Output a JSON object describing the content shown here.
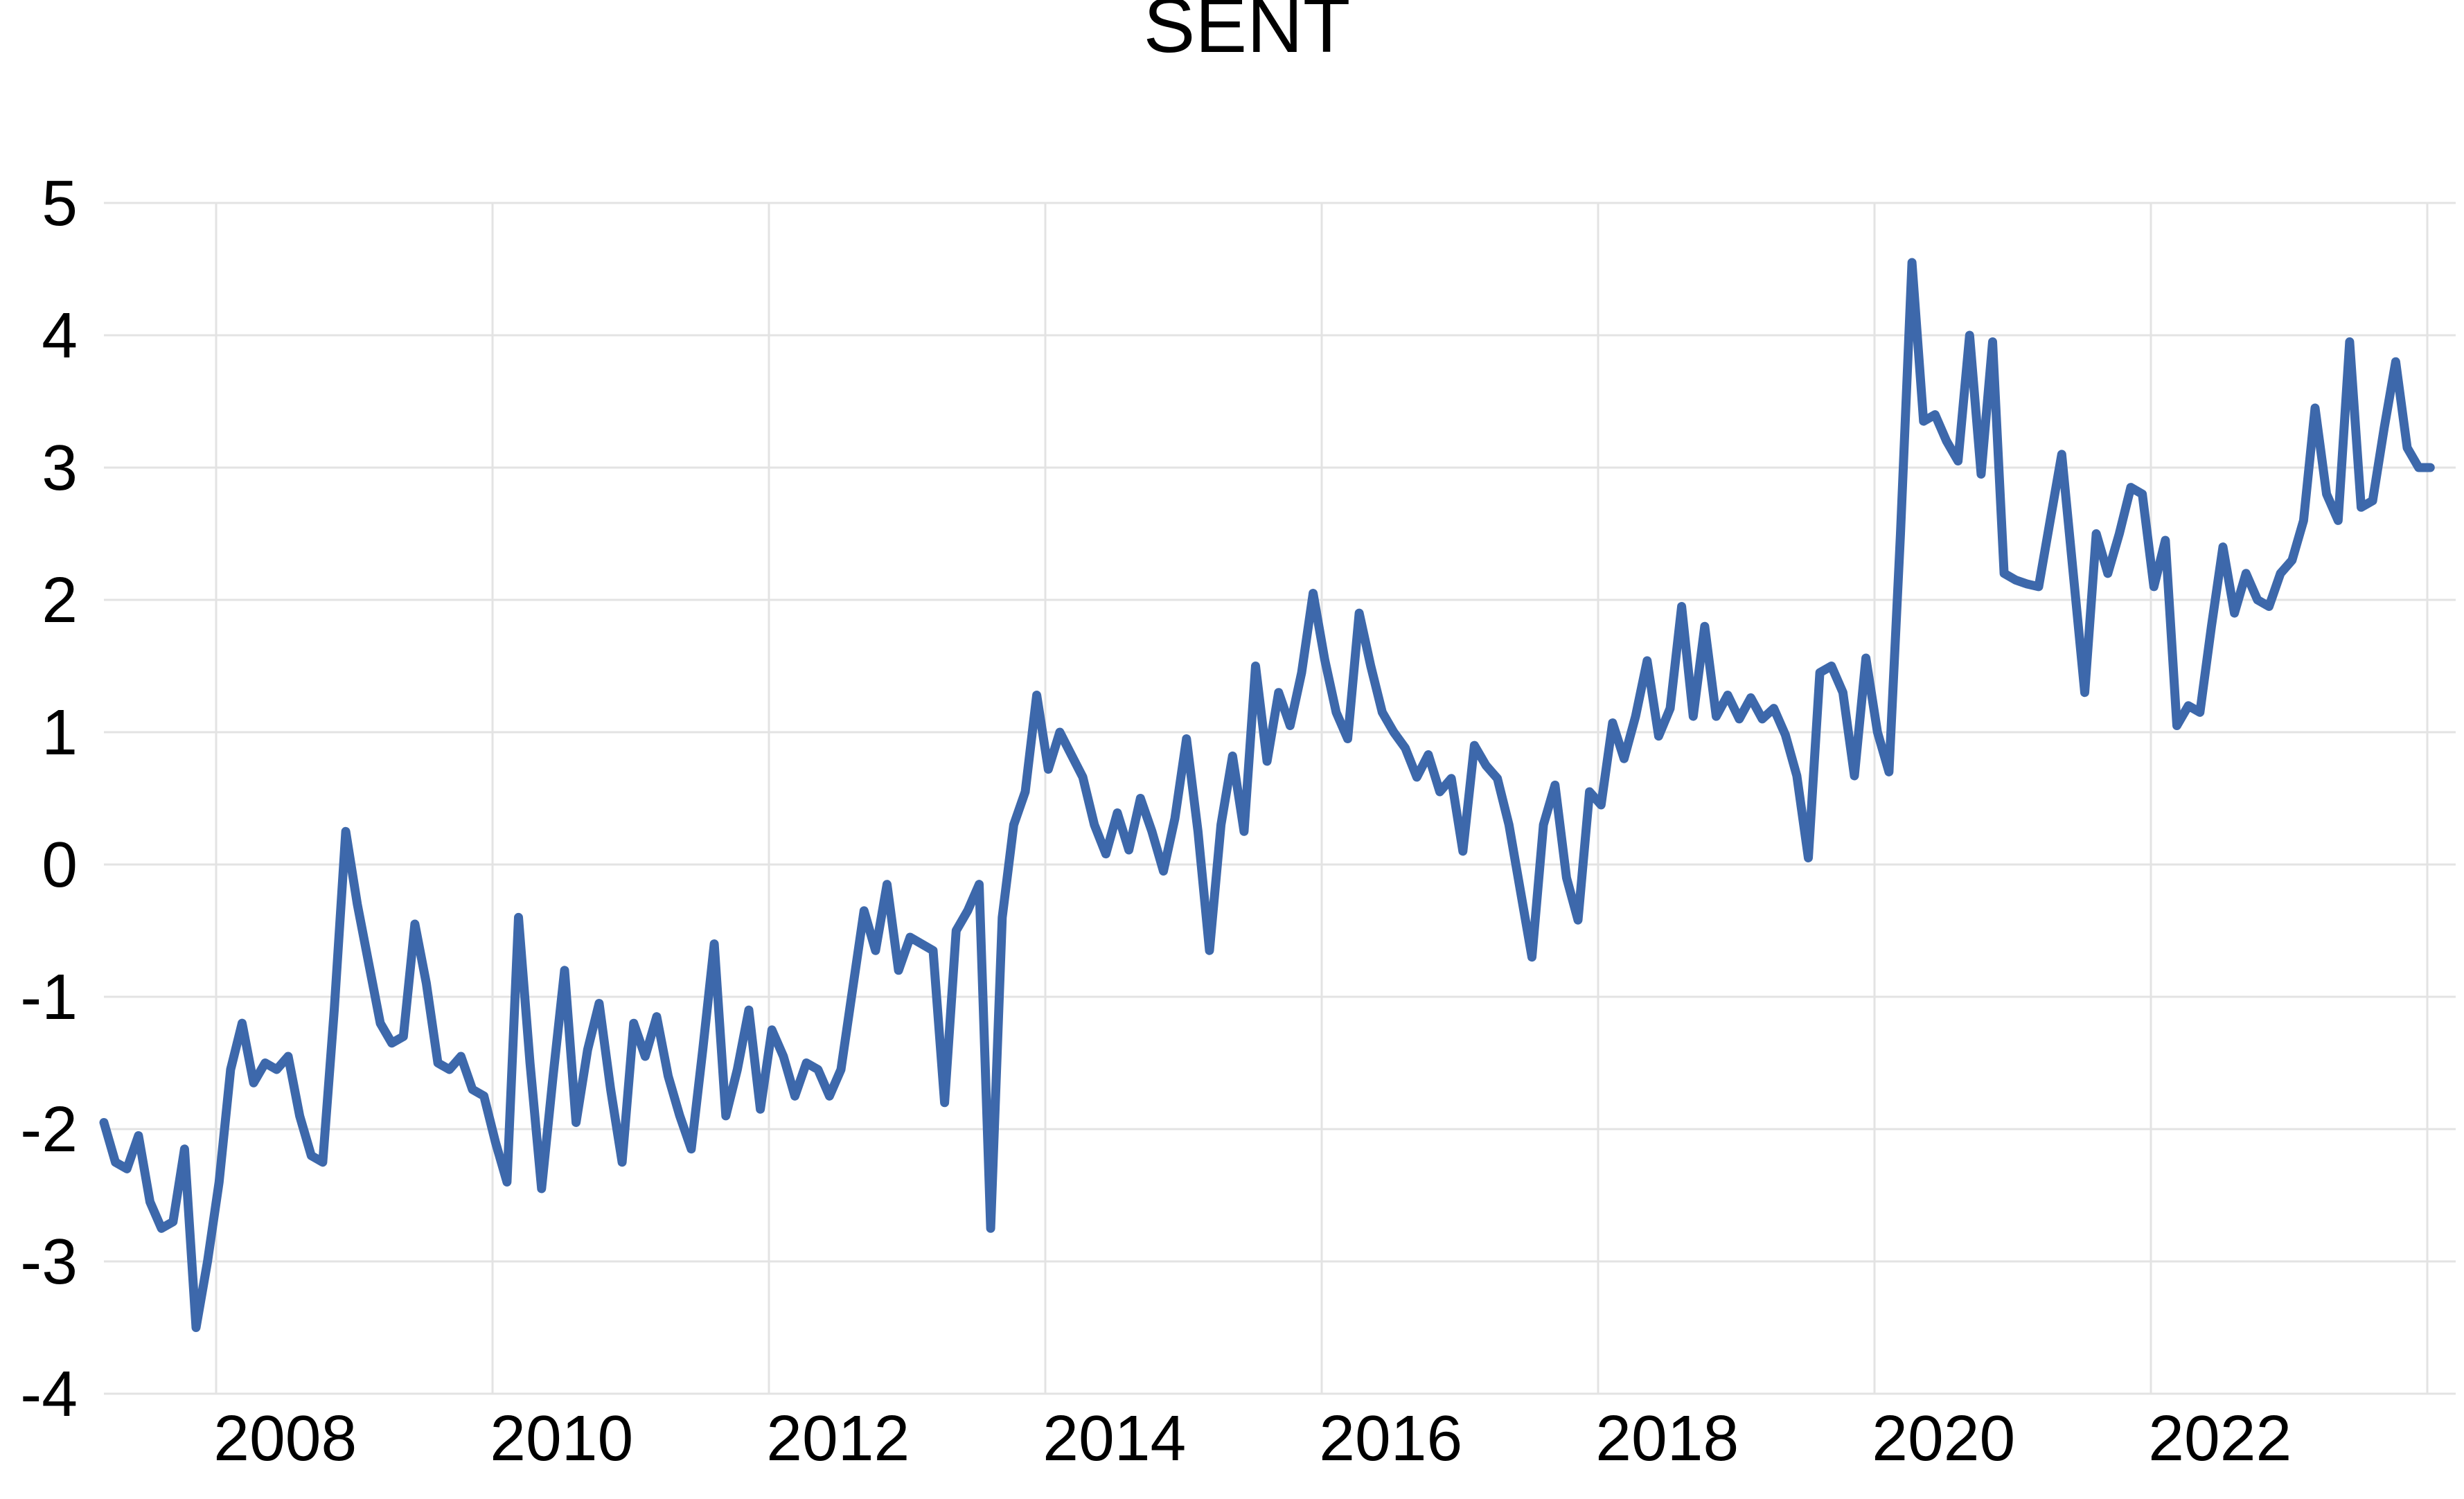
{
  "chart_data": {
    "type": "line",
    "title": "SENT",
    "series": [
      {
        "name": "SENT",
        "frequency": "monthly",
        "x_start": "2007-03",
        "x_end": "2024-01",
        "values": [
          -1.95,
          -2.25,
          -2.3,
          -2.05,
          -2.55,
          -2.75,
          -2.7,
          -2.15,
          -3.5,
          -3.0,
          -2.4,
          -1.55,
          -1.2,
          -1.65,
          -1.5,
          -1.55,
          -1.45,
          -1.9,
          -2.2,
          -2.25,
          -1.1,
          0.25,
          -0.3,
          -0.75,
          -1.2,
          -1.35,
          -1.3,
          -0.45,
          -0.9,
          -1.5,
          -1.55,
          -1.45,
          -1.7,
          -1.75,
          -2.1,
          -2.4,
          -0.4,
          -1.5,
          -2.45,
          -1.6,
          -0.8,
          -1.95,
          -1.4,
          -1.05,
          -1.7,
          -2.25,
          -1.2,
          -1.45,
          -1.15,
          -1.6,
          -1.9,
          -2.15,
          -1.4,
          -0.6,
          -1.9,
          -1.55,
          -1.1,
          -1.85,
          -1.25,
          -1.45,
          -1.75,
          -1.5,
          -1.55,
          -1.75,
          -1.55,
          -0.95,
          -0.35,
          -0.65,
          -0.15,
          -0.8,
          -0.55,
          -0.6,
          -0.65,
          -1.8,
          -0.5,
          -0.35,
          -0.15,
          -2.75,
          -0.4,
          0.3,
          0.55,
          1.28,
          0.72,
          1.0,
          0.83,
          0.66,
          0.3,
          0.08,
          0.39,
          0.11,
          0.5,
          0.25,
          -0.05,
          0.35,
          0.95,
          0.25,
          -0.65,
          0.3,
          0.82,
          0.25,
          1.5,
          0.78,
          1.3,
          1.05,
          1.45,
          2.05,
          1.55,
          1.15,
          0.95,
          1.9,
          1.5,
          1.15,
          1.0,
          0.88,
          0.66,
          0.83,
          0.55,
          0.65,
          0.1,
          0.9,
          0.75,
          0.65,
          0.3,
          -0.2,
          -0.7,
          0.3,
          0.6,
          -0.1,
          -0.42,
          0.55,
          0.45,
          1.07,
          0.8,
          1.12,
          1.54,
          0.97,
          1.18,
          1.95,
          1.12,
          1.8,
          1.12,
          1.28,
          1.1,
          1.26,
          1.1,
          1.18,
          0.98,
          0.67,
          0.05,
          1.45,
          1.5,
          1.3,
          0.67,
          1.56,
          1.0,
          0.7,
          2.5,
          4.55,
          3.35,
          3.4,
          3.2,
          3.05,
          4.0,
          2.95,
          3.95,
          2.2,
          2.15,
          2.12,
          2.1,
          2.6,
          3.1,
          2.2,
          1.3,
          2.5,
          2.2,
          2.5,
          2.85,
          2.8,
          2.1,
          2.45,
          1.05,
          1.2,
          1.15,
          1.8,
          2.4,
          1.9,
          2.2,
          2.0,
          1.95,
          2.2,
          2.3,
          2.6,
          3.45,
          2.8,
          2.6,
          3.95,
          2.7,
          2.75,
          3.3,
          3.8,
          3.15,
          3.0,
          3.0
        ]
      }
    ],
    "xlabel": "",
    "ylabel": "",
    "ylim": [
      -4,
      5
    ],
    "y_ticks": [
      "5",
      "4",
      "3",
      "2",
      "1",
      "0",
      "-1",
      "-2",
      "-3",
      "-4"
    ],
    "x_tick_labels": [
      "2008",
      "2010",
      "2012",
      "2014",
      "2016",
      "2018",
      "2020",
      "2022"
    ],
    "x_gridline_years": [
      2008,
      2010,
      2012,
      2014,
      2016,
      2018,
      2020,
      2022,
      2024
    ],
    "grid_on": true,
    "legend": "none",
    "line_color": "#3D68AB",
    "gridline_color": "#E3E3E3",
    "text_color": "#000000",
    "background_color": "#FFFFFF"
  }
}
